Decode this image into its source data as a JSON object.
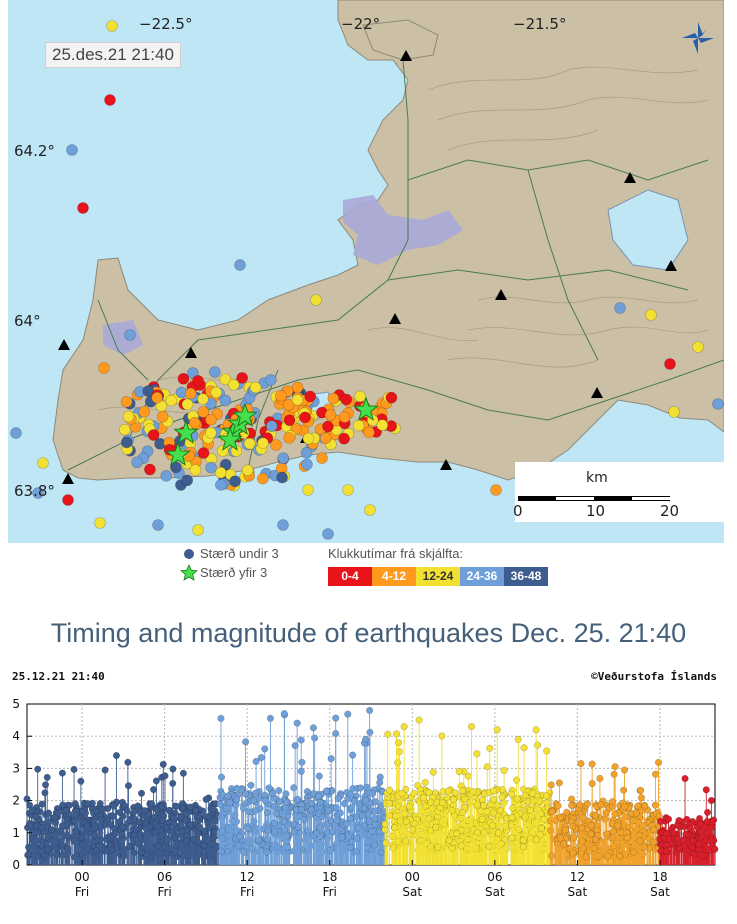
{
  "map": {
    "timestamp": "25.des.21  21:40",
    "lon_labels": [
      "−22.5°",
      "−22°",
      "−21.5°"
    ],
    "lat_labels": [
      "64.2°",
      "64°",
      "63.8°"
    ],
    "scale": {
      "unit": "km",
      "ticks": [
        "0",
        "10",
        "20"
      ]
    },
    "logo_icon": "vedur-logo-icon",
    "colors": {
      "sea": "#bfe6f5",
      "land": "#cbbfa5",
      "lake": "#a9a9d8"
    }
  },
  "legend": {
    "small_label": "Stærð undir 3",
    "large_label": "Stærð yfir 3",
    "hours_title": "Klukkutímar frá skjálfta:",
    "bins": [
      {
        "label": "0-4",
        "color": "#e8141a"
      },
      {
        "label": "4-12",
        "color": "#ff9a1e"
      },
      {
        "label": "12-24",
        "color": "#f2e032"
      },
      {
        "label": "24-36",
        "color": "#6f9fd8"
      },
      {
        "label": "36-48",
        "color": "#3e5d8f"
      }
    ]
  },
  "headline": "Timing and magnitude of earthquakes Dec. 25. 21:40",
  "chart": {
    "timestamp": "25.12.21  21:40",
    "credit": "©Veðurstofa Íslands"
  },
  "chart_data": {
    "type": "scatter",
    "ylim": [
      0,
      5
    ],
    "yticks": [
      "0",
      "1",
      "2",
      "3",
      "4",
      "5"
    ],
    "x_ticks": [
      {
        "hour": "00",
        "day": "Fri"
      },
      {
        "hour": "06",
        "day": "Fri"
      },
      {
        "hour": "12",
        "day": "Fri"
      },
      {
        "hour": "18",
        "day": "Fri"
      },
      {
        "hour": "00",
        "day": "Sat"
      },
      {
        "hour": "06",
        "day": "Sat"
      },
      {
        "hour": "12",
        "day": "Sat"
      },
      {
        "hour": "18",
        "day": "Sat"
      }
    ],
    "x_range_hours": [
      -4,
      46
    ],
    "tick_hours": [
      0,
      6,
      12,
      18,
      24,
      30,
      36,
      42
    ],
    "segments": [
      {
        "from": -4,
        "to": 10,
        "color": "#3e5d8f",
        "base": 1.0,
        "spread": 1.4,
        "peak": 3.2
      },
      {
        "from": 10,
        "to": 22,
        "color": "#6f9fd8",
        "base": 1.3,
        "spread": 1.7,
        "peak": 4.8
      },
      {
        "from": 22,
        "to": 34,
        "color": "#f2e032",
        "base": 1.3,
        "spread": 1.6,
        "peak": 4.3
      },
      {
        "from": 34,
        "to": 42,
        "color": "#f0a22a",
        "base": 1.0,
        "spread": 1.4,
        "peak": 3.2
      },
      {
        "from": 42,
        "to": 46,
        "color": "#d8202c",
        "base": 0.8,
        "spread": 1.0,
        "peak": 2.7
      }
    ],
    "events_over_3": [
      {
        "t": 2.5,
        "m": 3.4
      },
      {
        "t": 14.7,
        "m": 4.7
      },
      {
        "t": 20.9,
        "m": 4.8
      },
      {
        "t": 23.0,
        "m": 3.8
      },
      {
        "t": 24.5,
        "m": 4.5
      },
      {
        "t": 28.3,
        "m": 4.3
      },
      {
        "t": 33.0,
        "m": 4.2
      },
      {
        "t": 31.7,
        "m": 3.9
      }
    ]
  }
}
